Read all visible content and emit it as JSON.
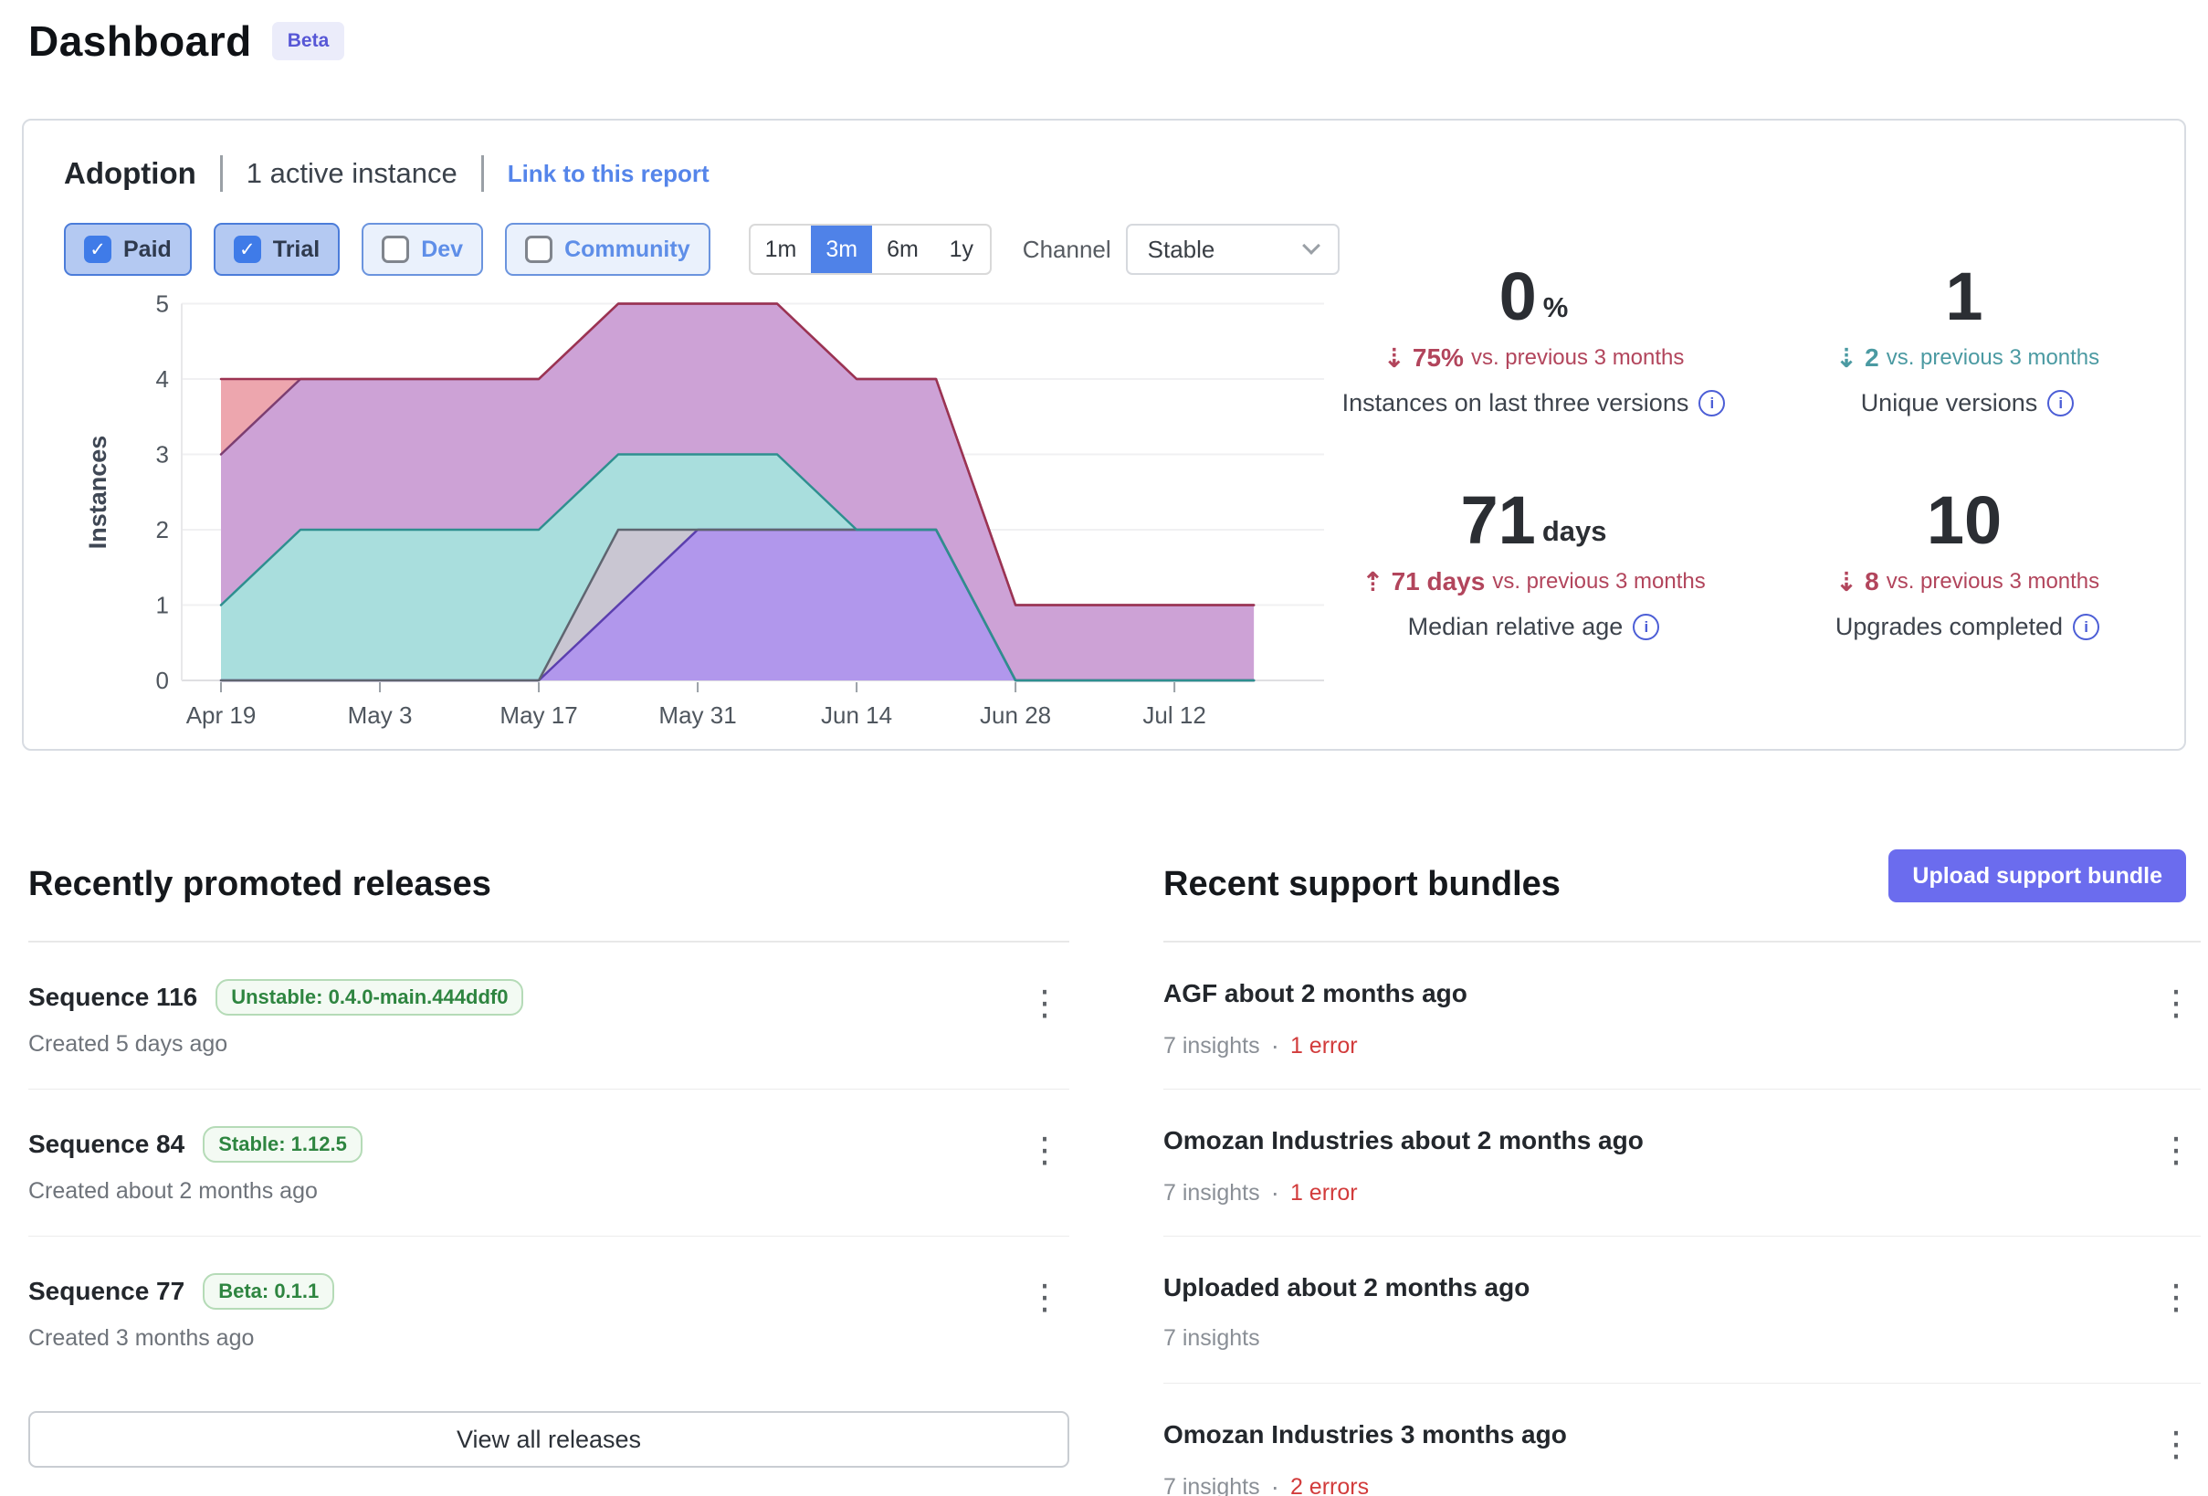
{
  "page": {
    "title": "Dashboard",
    "beta_badge": "Beta"
  },
  "icons": {
    "check": "✓",
    "kebab": "⋮",
    "info": "i",
    "dot_sep": "·"
  },
  "colors": {
    "accent_blue": "#4f82e8",
    "link_blue": "#5585ea",
    "indigo_button": "#6b6cee",
    "badge_green": "#2e8540",
    "error_red": "#d23b3b",
    "trend_red": "#b2455c",
    "trend_teal": "#4b9aa2"
  },
  "adoption": {
    "heading": "Adoption",
    "active_instances": "1 active instance",
    "link": "Link to this report",
    "filters": [
      {
        "label": "Paid",
        "checked": true
      },
      {
        "label": "Trial",
        "checked": true
      },
      {
        "label": "Dev",
        "checked": false
      },
      {
        "label": "Community",
        "checked": false
      }
    ],
    "ranges": [
      {
        "label": "1m",
        "selected": false
      },
      {
        "label": "3m",
        "selected": true
      },
      {
        "label": "6m",
        "selected": false
      },
      {
        "label": "1y",
        "selected": false
      }
    ],
    "channel_label": "Channel",
    "channel_value": "Stable",
    "stats": [
      {
        "value": "0",
        "suffix": "%",
        "direction": "down",
        "trend_color": "#b2455c",
        "change": "75%",
        "change_rest": "vs. previous 3 months",
        "label": "Instances on last three versions"
      },
      {
        "value": "1",
        "suffix": "",
        "direction": "down",
        "trend_color": "#4b9aa2",
        "change": "2",
        "change_rest": "vs. previous 3 months",
        "label": "Unique versions"
      },
      {
        "value": "71",
        "suffix": "days",
        "direction": "up",
        "trend_color": "#b2455c",
        "change": "71 days",
        "change_rest": "vs. previous 3 months",
        "label": "Median relative age"
      },
      {
        "value": "10",
        "suffix": "",
        "direction": "down",
        "trend_color": "#b2455c",
        "change": "8",
        "change_rest": "vs. previous 3 months",
        "label": "Upgrades completed"
      }
    ]
  },
  "chart_data": {
    "type": "area",
    "stacked": true,
    "title": "",
    "xlabel": "",
    "ylabel": "Instances",
    "ylim": [
      0,
      5
    ],
    "yticks": [
      0,
      1,
      2,
      3,
      4,
      5
    ],
    "grid": true,
    "legend": false,
    "x_days": [
      0,
      7,
      14,
      21,
      28,
      35,
      42,
      49,
      56,
      63,
      70,
      77,
      84,
      91
    ],
    "xticks": [
      {
        "day": 0,
        "label": "Apr 19"
      },
      {
        "day": 14,
        "label": "May 3"
      },
      {
        "day": 28,
        "label": "May 17"
      },
      {
        "day": 42,
        "label": "May 31"
      },
      {
        "day": 56,
        "label": "Jun 14"
      },
      {
        "day": 70,
        "label": "Jun 28"
      },
      {
        "day": 84,
        "label": "Jul 12"
      }
    ],
    "series": [
      {
        "name": "violet",
        "fill": "#b197ec",
        "line": "#5b3fae",
        "values": [
          0,
          0,
          0,
          0,
          0,
          1,
          2,
          2,
          2,
          2,
          0,
          0,
          0,
          0
        ]
      },
      {
        "name": "gray",
        "fill": "#c9c6d2",
        "line": "#5f6570",
        "values": [
          0,
          0,
          0,
          0,
          0,
          1,
          0,
          0,
          0,
          0,
          0,
          0,
          0,
          0
        ]
      },
      {
        "name": "teal",
        "fill": "#a9dedd",
        "line": "#2e8f8f",
        "values": [
          1,
          2,
          2,
          2,
          2,
          1,
          1,
          1,
          0,
          0,
          0,
          0,
          0,
          0
        ]
      },
      {
        "name": "mauve",
        "fill": "#cda2d6",
        "line": "#7c3e71",
        "values": [
          2,
          2,
          2,
          2,
          2,
          2,
          2,
          2,
          2,
          2,
          1,
          1,
          1,
          1
        ]
      },
      {
        "name": "salmon",
        "fill": "#eda6ae",
        "line": "#9c3352",
        "values": [
          1,
          0,
          0,
          0,
          0,
          0,
          0,
          0,
          0,
          0,
          0,
          0,
          0,
          0
        ]
      }
    ]
  },
  "releases": {
    "heading": "Recently promoted releases",
    "view_all": "View all releases",
    "items": [
      {
        "title": "Sequence 116",
        "badge": "Unstable: 0.4.0-main.444ddf0",
        "created": "Created 5 days ago"
      },
      {
        "title": "Sequence 84",
        "badge": "Stable: 1.12.5",
        "created": "Created about 2 months ago"
      },
      {
        "title": "Sequence 77",
        "badge": "Beta: 0.1.1",
        "created": "Created 3 months ago"
      }
    ]
  },
  "bundles": {
    "heading": "Recent support bundles",
    "upload_button": "Upload support bundle",
    "items": [
      {
        "title": "AGF about 2 months ago",
        "insights": "7 insights",
        "errors": "1 error"
      },
      {
        "title": "Omozan Industries about 2 months ago",
        "insights": "7 insights",
        "errors": "1 error"
      },
      {
        "title": "Uploaded about 2 months ago",
        "insights": "7 insights",
        "errors": ""
      },
      {
        "title": "Omozan Industries 3 months ago",
        "insights": "7 insights",
        "errors": "2 errors"
      }
    ]
  }
}
